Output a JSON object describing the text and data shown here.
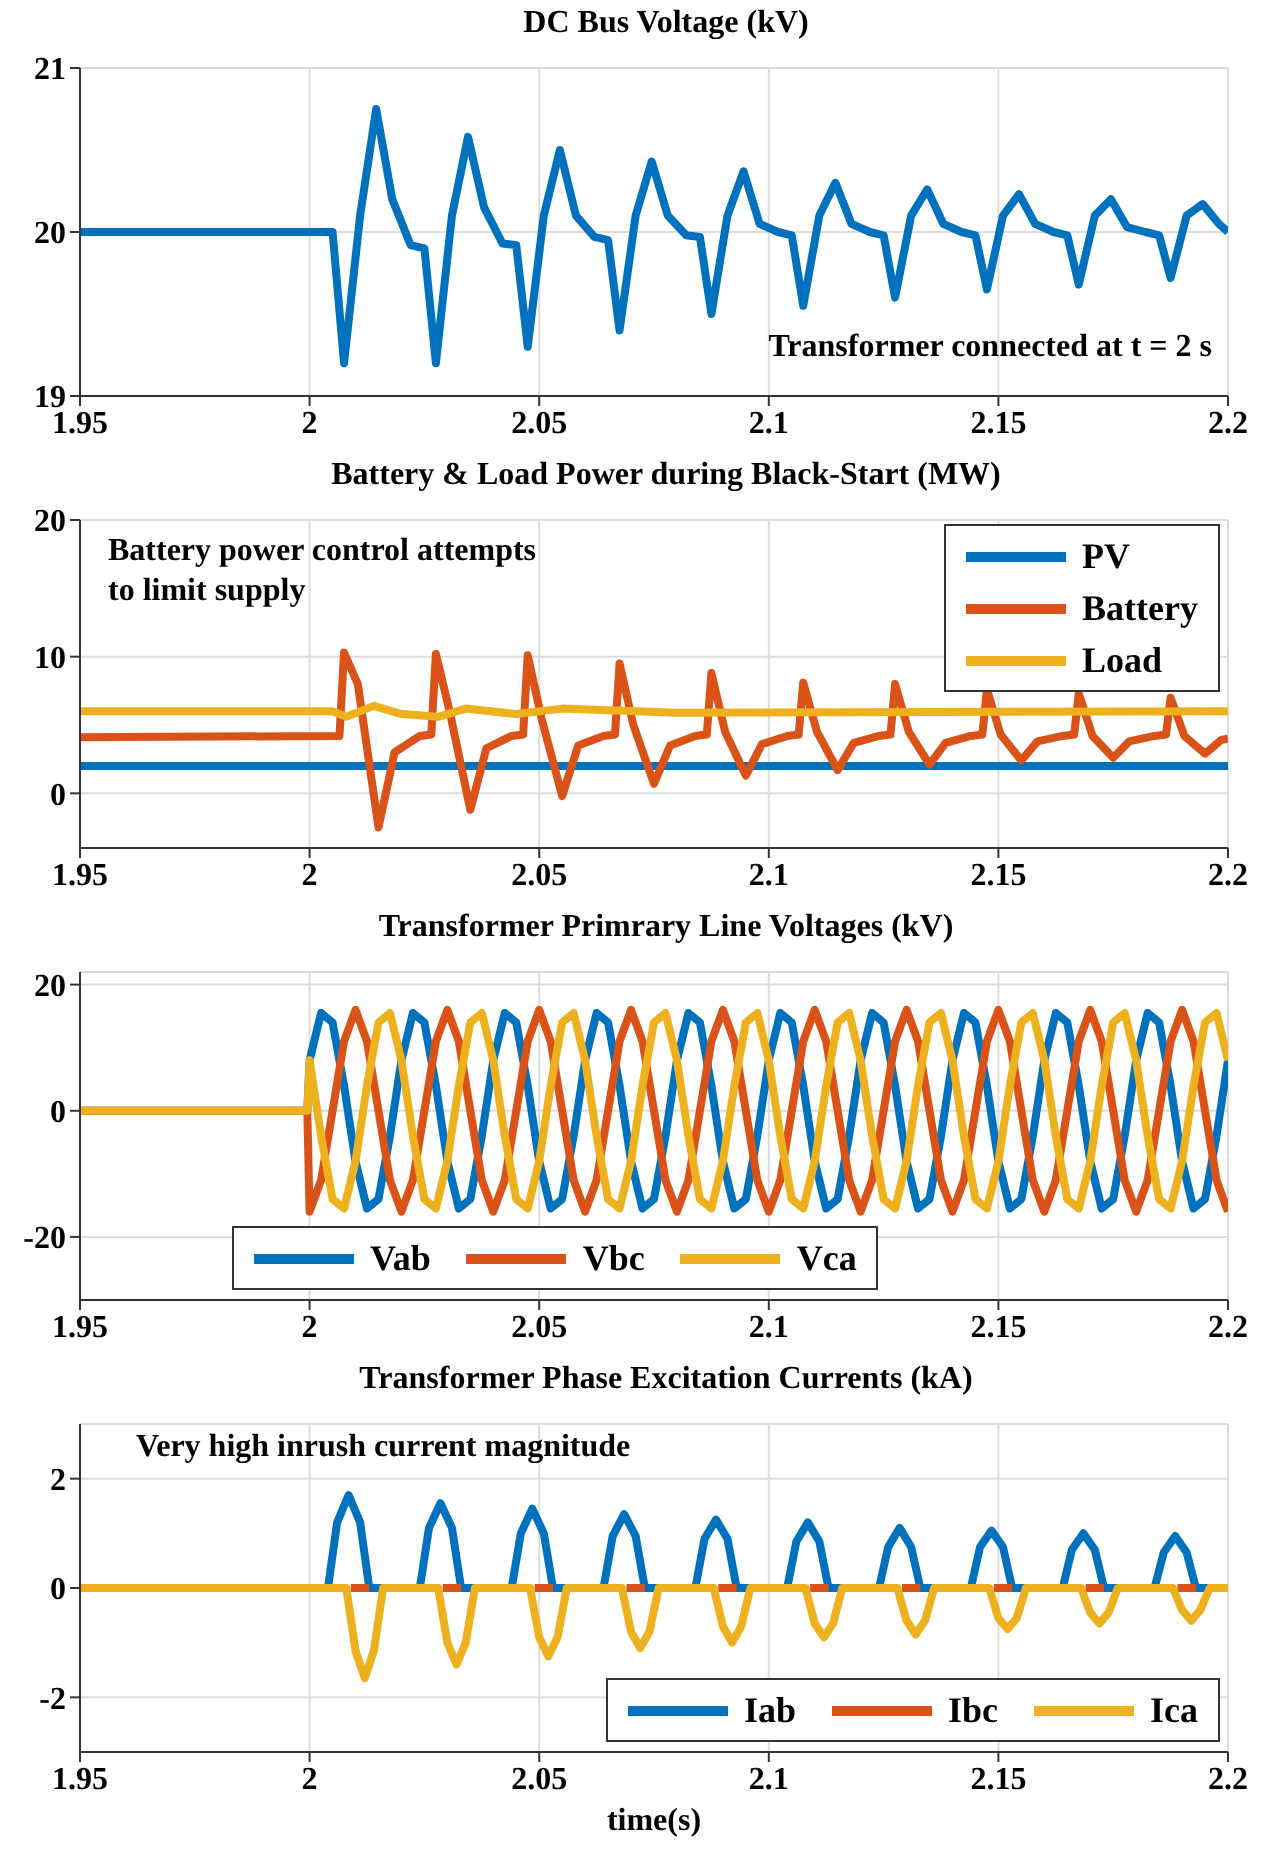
{
  "chart_data": [
    {
      "type": "line",
      "title": "DC Bus Voltage (kV)",
      "xlim": [
        1.95,
        2.2
      ],
      "xticks": [
        1.95,
        2,
        2.05,
        2.1,
        2.15,
        2.2
      ],
      "ylim": [
        19,
        21
      ],
      "yticks": [
        19,
        20,
        21
      ],
      "grid": true,
      "legend": false,
      "annotations": [
        "Transformer connected at t = 2 s"
      ],
      "series": [
        {
          "color": "#0072bd",
          "x": [
            1.95,
            2.005,
            2.0075,
            2.011,
            2.0145,
            2.018,
            2.022,
            2.025,
            2.0275,
            2.031,
            2.0345,
            2.038,
            2.042,
            2.045,
            2.0475,
            2.051,
            2.0545,
            2.058,
            2.062,
            2.065,
            2.0675,
            2.071,
            2.0745,
            2.078,
            2.082,
            2.085,
            2.0875,
            2.091,
            2.0945,
            2.098,
            2.102,
            2.105,
            2.1075,
            2.111,
            2.1145,
            2.118,
            2.122,
            2.125,
            2.1275,
            2.131,
            2.1345,
            2.138,
            2.142,
            2.145,
            2.1475,
            2.151,
            2.1545,
            2.158,
            2.162,
            2.165,
            2.1675,
            2.171,
            2.1745,
            2.178,
            2.182,
            2.185,
            2.1875,
            2.191,
            2.1945,
            2.198,
            2.2
          ],
          "values": [
            20,
            20,
            19.2,
            20.1,
            20.75,
            20.2,
            19.92,
            19.9,
            19.2,
            20.1,
            20.58,
            20.15,
            19.93,
            19.92,
            19.3,
            20.1,
            20.5,
            20.1,
            19.97,
            19.95,
            19.4,
            20.1,
            20.43,
            20.1,
            19.98,
            19.97,
            19.5,
            20.1,
            20.37,
            20.05,
            20,
            19.98,
            19.55,
            20.1,
            20.3,
            20.05,
            20,
            19.98,
            19.6,
            20.1,
            20.26,
            20.05,
            20,
            19.98,
            19.65,
            20.1,
            20.23,
            20.05,
            20,
            19.98,
            19.68,
            20.1,
            20.2,
            20.03,
            20,
            19.98,
            19.72,
            20.1,
            20.17,
            20.05,
            20
          ]
        }
      ]
    },
    {
      "type": "line",
      "title": "Battery & Load Power during Black-Start (MW)",
      "xlim": [
        1.95,
        2.2
      ],
      "xticks": [
        1.95,
        2,
        2.05,
        2.1,
        2.15,
        2.2
      ],
      "ylim": [
        -4,
        20
      ],
      "yticks": [
        0,
        10,
        20
      ],
      "grid": true,
      "legend": "top right",
      "annotations": [
        "Battery power control attempts to limit supply"
      ],
      "series": [
        {
          "name": "PV",
          "color": "#0072bd",
          "x": [
            1.95,
            2.2
          ],
          "values": [
            2,
            2
          ]
        },
        {
          "name": "Battery",
          "color": "#d95319",
          "x": [
            1.95,
            2.0065,
            2.0075,
            2.0105,
            2.015,
            2.0185,
            2.024,
            2.0265,
            2.0275,
            2.0305,
            2.035,
            2.0385,
            2.044,
            2.0465,
            2.0475,
            2.0505,
            2.055,
            2.0585,
            2.064,
            2.0665,
            2.0675,
            2.0705,
            2.075,
            2.0785,
            2.084,
            2.0865,
            2.0875,
            2.0905,
            2.095,
            2.0985,
            2.104,
            2.1065,
            2.1075,
            2.1105,
            2.115,
            2.1185,
            2.124,
            2.1265,
            2.1275,
            2.1305,
            2.135,
            2.1385,
            2.144,
            2.1465,
            2.1475,
            2.1505,
            2.155,
            2.1585,
            2.164,
            2.1665,
            2.1675,
            2.1705,
            2.175,
            2.1785,
            2.184,
            2.1865,
            2.1875,
            2.1905,
            2.195,
            2.1985,
            2.2
          ],
          "values": [
            4.1,
            4.2,
            10.3,
            8,
            -2.5,
            3,
            4.2,
            4.3,
            10.2,
            6,
            -1.2,
            3.3,
            4.2,
            4.3,
            10.1,
            5.5,
            -0.2,
            3.5,
            4.2,
            4.3,
            9.5,
            5,
            0.7,
            3.5,
            4.2,
            4.3,
            8.8,
            4.5,
            1.3,
            3.6,
            4.2,
            4.3,
            8.1,
            4.5,
            1.7,
            3.7,
            4.2,
            4.3,
            8,
            4.5,
            2.1,
            3.7,
            4.2,
            4.3,
            7.6,
            4.3,
            2.4,
            3.8,
            4.2,
            4.3,
            7.3,
            4.2,
            2.6,
            3.8,
            4.2,
            4.3,
            7,
            4.2,
            2.9,
            3.9,
            4
          ]
        },
        {
          "name": "Load",
          "color": "#edb120",
          "x": [
            1.95,
            2.005,
            2.008,
            2.014,
            2.02,
            2.028,
            2.034,
            2.045,
            2.055,
            2.08,
            2.2
          ],
          "values": [
            6,
            6,
            5.6,
            6.4,
            5.8,
            5.6,
            6.2,
            5.8,
            6.2,
            5.9,
            6
          ]
        }
      ]
    },
    {
      "type": "line",
      "title": "Transformer Primrary Line Voltages (kV)",
      "xlim": [
        1.95,
        2.2
      ],
      "xticks": [
        1.95,
        2,
        2.05,
        2.1,
        2.15,
        2.2
      ],
      "ylim": [
        -30,
        22
      ],
      "yticks": [
        -20,
        0,
        20
      ],
      "grid": true,
      "legend": "bottom",
      "x": [
        1.95,
        1.9995,
        2,
        2.0025,
        2.005,
        2.0075,
        2.01,
        2.0125,
        2.015,
        2.0175,
        2.02,
        2.0225,
        2.025,
        2.0275,
        2.03,
        2.0325,
        2.035,
        2.0375,
        2.04,
        2.0425,
        2.045,
        2.0475,
        2.05,
        2.0525,
        2.055,
        2.0575,
        2.06,
        2.0625,
        2.065,
        2.0675,
        2.07,
        2.0725,
        2.075,
        2.0775,
        2.08,
        2.0825,
        2.085,
        2.0875,
        2.09,
        2.0925,
        2.095,
        2.0975,
        2.1,
        2.1025,
        2.105,
        2.1075,
        2.11,
        2.1125,
        2.115,
        2.1175,
        2.12,
        2.1225,
        2.125,
        2.1275,
        2.13,
        2.1325,
        2.135,
        2.1375,
        2.14,
        2.1425,
        2.145,
        2.1475,
        2.15,
        2.1525,
        2.155,
        2.1575,
        2.16,
        2.1625,
        2.165,
        2.1675,
        2.17,
        2.1725,
        2.175,
        2.1775,
        2.18,
        2.1825,
        2.185,
        2.1875,
        2.19,
        2.1925,
        2.195,
        2.1975,
        2.2
      ],
      "series": [
        {
          "name": "Vab",
          "color": "#0072bd",
          "values": [
            0,
            0,
            8,
            15.5,
            14,
            4,
            -8,
            -15.5,
            -14,
            -4,
            8,
            15.5,
            14,
            4,
            -8,
            -15.5,
            -14,
            -4,
            8,
            15.5,
            14,
            4,
            -8,
            -15.5,
            -14,
            -4,
            8,
            15.5,
            14,
            4,
            -8,
            -15.5,
            -14,
            -4,
            8,
            15.5,
            14,
            4,
            -8,
            -15.5,
            -14,
            -4,
            8,
            15.5,
            14,
            4,
            -8,
            -15.5,
            -14,
            -4,
            8,
            15.5,
            14,
            4,
            -8,
            -15.5,
            -14,
            -4,
            8,
            15.5,
            14,
            4,
            -8,
            -15.5,
            -14,
            -4,
            8,
            15.5,
            14,
            4,
            -8,
            -15.5,
            -14,
            -4,
            8,
            15.5,
            14,
            4,
            -8,
            -15.5,
            -14,
            -4,
            8
          ]
        },
        {
          "name": "Vbc",
          "color": "#d95319",
          "values": [
            0,
            0,
            -16,
            -11,
            0,
            11,
            16,
            11,
            0,
            -11,
            -16,
            -11,
            0,
            11,
            16,
            11,
            0,
            -11,
            -16,
            -11,
            0,
            11,
            16,
            11,
            0,
            -11,
            -16,
            -11,
            0,
            11,
            16,
            11,
            0,
            -11,
            -16,
            -11,
            0,
            11,
            16,
            11,
            0,
            -11,
            -16,
            -11,
            0,
            11,
            16,
            11,
            0,
            -11,
            -16,
            -11,
            0,
            11,
            16,
            11,
            0,
            -11,
            -16,
            -11,
            0,
            11,
            16,
            11,
            0,
            -11,
            -16,
            -11,
            0,
            11,
            16,
            11,
            0,
            -11,
            -16,
            -11,
            0,
            11,
            16,
            11,
            0,
            -11,
            -16
          ]
        },
        {
          "name": "Vca",
          "color": "#edb120",
          "values": [
            0,
            0,
            8,
            -4,
            -14,
            -15.5,
            -8,
            4,
            14,
            15.5,
            8,
            -4,
            -14,
            -15.5,
            -8,
            4,
            14,
            15.5,
            8,
            -4,
            -14,
            -15.5,
            -8,
            4,
            14,
            15.5,
            8,
            -4,
            -14,
            -15.5,
            -8,
            4,
            14,
            15.5,
            8,
            -4,
            -14,
            -15.5,
            -8,
            4,
            14,
            15.5,
            8,
            -4,
            -14,
            -15.5,
            -8,
            4,
            14,
            15.5,
            8,
            -4,
            -14,
            -15.5,
            -8,
            4,
            14,
            15.5,
            8,
            -4,
            -14,
            -15.5,
            -8,
            4,
            14,
            15.5,
            8,
            -4,
            -14,
            -15.5,
            -8,
            4,
            14,
            15.5,
            8,
            -4,
            -14,
            -15.5,
            -8,
            4,
            14,
            15.5,
            8
          ]
        }
      ]
    },
    {
      "type": "line",
      "title": "Transformer Phase Excitation Currents (kA)",
      "xlabel": "time(s)",
      "xlim": [
        1.95,
        2.2
      ],
      "xticks": [
        1.95,
        2,
        2.05,
        2.1,
        2.15,
        2.2
      ],
      "ylim": [
        -3,
        3
      ],
      "yticks": [
        -2,
        0,
        2
      ],
      "grid": true,
      "legend": "bottom right",
      "annotations": [
        "Very high inrush current magnitude"
      ],
      "series": [
        {
          "name": "Iab",
          "color": "#0072bd",
          "x": [
            1.95,
            2.004,
            2.006,
            2.0085,
            2.011,
            2.013,
            2.024,
            2.026,
            2.0285,
            2.031,
            2.033,
            2.044,
            2.046,
            2.0485,
            2.051,
            2.053,
            2.064,
            2.066,
            2.0685,
            2.071,
            2.073,
            2.084,
            2.086,
            2.0885,
            2.091,
            2.093,
            2.104,
            2.106,
            2.1085,
            2.111,
            2.113,
            2.124,
            2.126,
            2.1285,
            2.131,
            2.133,
            2.144,
            2.146,
            2.1485,
            2.151,
            2.153,
            2.164,
            2.166,
            2.1685,
            2.171,
            2.173,
            2.184,
            2.186,
            2.1885,
            2.191,
            2.193,
            2.2
          ],
          "values": [
            0,
            0,
            1.2,
            1.7,
            1.2,
            0,
            0,
            1.1,
            1.55,
            1.1,
            0,
            0,
            1,
            1.45,
            1,
            0,
            0,
            0.95,
            1.35,
            0.95,
            0,
            0,
            0.9,
            1.25,
            0.9,
            0,
            0,
            0.85,
            1.2,
            0.85,
            0,
            0,
            0.75,
            1.1,
            0.75,
            0,
            0,
            0.75,
            1.05,
            0.75,
            0,
            0,
            0.7,
            1,
            0.7,
            0,
            0,
            0.65,
            0.95,
            0.65,
            0,
            0
          ]
        },
        {
          "name": "Ibc",
          "color": "#d95319",
          "x": [
            2.009,
            2.013,
            2.02,
            2.029,
            2.033,
            2.04,
            2.049,
            2.053,
            2.06,
            2.069,
            2.073,
            2.08,
            2.089,
            2.093,
            2.1,
            2.109,
            2.113,
            2.12,
            2.129,
            2.133,
            2.14,
            2.149,
            2.153,
            2.16,
            2.169,
            2.173,
            2.18,
            2.189,
            2.193
          ],
          "values": [
            0,
            0,
            null,
            0,
            0,
            null,
            0,
            0,
            null,
            0,
            0,
            null,
            0,
            0,
            null,
            0,
            0,
            null,
            0,
            0,
            null,
            0,
            0,
            null,
            0,
            0,
            null,
            0,
            0
          ]
        },
        {
          "name": "Ica",
          "color": "#edb120",
          "x": [
            1.95,
            2.008,
            2.01,
            2.012,
            2.014,
            2.016,
            2.028,
            2.03,
            2.032,
            2.034,
            2.036,
            2.048,
            2.05,
            2.052,
            2.054,
            2.056,
            2.068,
            2.07,
            2.072,
            2.074,
            2.076,
            2.088,
            2.09,
            2.092,
            2.094,
            2.096,
            2.108,
            2.11,
            2.112,
            2.114,
            2.116,
            2.128,
            2.13,
            2.132,
            2.134,
            2.136,
            2.148,
            2.15,
            2.152,
            2.154,
            2.156,
            2.168,
            2.17,
            2.172,
            2.174,
            2.176,
            2.188,
            2.19,
            2.192,
            2.194,
            2.196,
            2.2
          ],
          "values": [
            0,
            0,
            -1.15,
            -1.65,
            -1.15,
            0,
            0,
            -1,
            -1.4,
            -1,
            0,
            0,
            -0.9,
            -1.25,
            -0.9,
            0,
            0,
            -0.8,
            -1.1,
            -0.8,
            0,
            0,
            -0.7,
            -1,
            -0.7,
            0,
            0,
            -0.65,
            -0.9,
            -0.65,
            0,
            0,
            -0.6,
            -0.85,
            -0.6,
            0,
            0,
            -0.55,
            -0.75,
            -0.55,
            0,
            0,
            -0.45,
            -0.65,
            -0.45,
            0,
            0,
            -0.4,
            -0.6,
            -0.4,
            0,
            0
          ]
        }
      ]
    }
  ]
}
